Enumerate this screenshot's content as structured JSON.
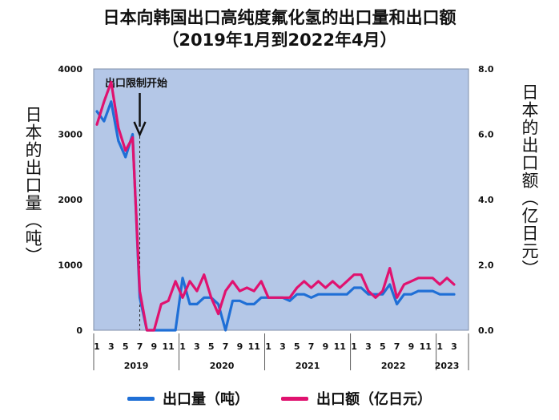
{
  "chart_data": {
    "type": "line",
    "title": "日本向韩国出口高纯度氟化氢的出口量和出口额",
    "subtitle": "（2019年1月到2022年4月）",
    "ylabel_left": "日本的出口量（吨）",
    "ylabel_right": "日本的出口额（亿日元）",
    "ylim_left": [
      0,
      4000
    ],
    "ylim_right": [
      0,
      8
    ],
    "y_ticks_left": [
      "0",
      "1000",
      "2000",
      "3000",
      "4000"
    ],
    "y_ticks_right": [
      "0.0",
      "2.0",
      "4.0",
      "6.0",
      "8.0"
    ],
    "x_month_labels": [
      "1",
      "3",
      "5",
      "7",
      "9",
      "11",
      "1",
      "3",
      "5",
      "7",
      "9",
      "11",
      "1",
      "3",
      "5",
      "7",
      "9",
      "11",
      "1",
      "3",
      "5",
      "7",
      "9",
      "11",
      "1",
      "3"
    ],
    "x_year_labels": [
      "2019",
      "2020",
      "2021",
      "2022",
      "2023"
    ],
    "annotation": "出口限制开始",
    "annotation_month_index": 6,
    "background_color": "#b4c7e7",
    "series": [
      {
        "name": "出口量（吨）",
        "axis": "left",
        "color": "#1f6fd6",
        "values": [
          3350,
          3200,
          3500,
          2900,
          2650,
          3000,
          500,
          0,
          0,
          0,
          0,
          0,
          800,
          400,
          400,
          500,
          500,
          400,
          0,
          450,
          450,
          400,
          400,
          500,
          500,
          500,
          500,
          450,
          550,
          550,
          500,
          550,
          550,
          550,
          550,
          550,
          650,
          650,
          550,
          550,
          550,
          700,
          400,
          550,
          550,
          600,
          600,
          600,
          550,
          550,
          550
        ]
      },
      {
        "name": "出口额（亿日元）",
        "axis": "right",
        "color": "#e0126f",
        "values": [
          6.3,
          7.0,
          7.6,
          6.2,
          5.5,
          5.9,
          1.2,
          0.0,
          0.0,
          0.8,
          0.9,
          1.5,
          1.0,
          1.5,
          1.2,
          1.7,
          1.0,
          0.5,
          1.2,
          1.5,
          1.2,
          1.3,
          1.2,
          1.5,
          1.0,
          1.0,
          1.0,
          1.0,
          1.3,
          1.5,
          1.3,
          1.5,
          1.3,
          1.5,
          1.3,
          1.5,
          1.7,
          1.7,
          1.2,
          1.0,
          1.2,
          1.9,
          1.0,
          1.4,
          1.5,
          1.6,
          1.6,
          1.6,
          1.4,
          1.6,
          1.4
        ]
      }
    ]
  }
}
